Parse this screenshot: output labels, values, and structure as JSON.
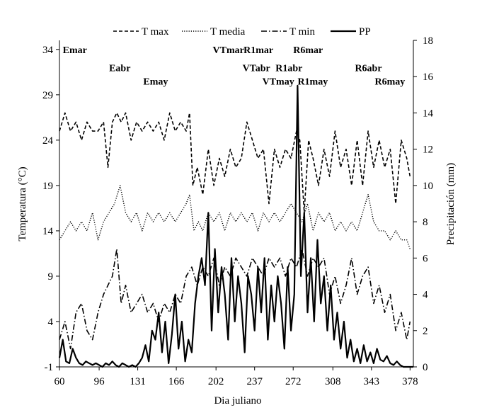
{
  "chart_data": {
    "type": "line",
    "xlabel": "Dia juliano",
    "ylabel_left": "Temperatura  (°C)",
    "ylabel_right": "Precipitación  (mm)",
    "x_ticks": [
      60,
      96,
      131,
      166,
      202,
      237,
      272,
      308,
      343,
      378
    ],
    "xlim": [
      60,
      381
    ],
    "y_left_ticks": [
      -1,
      4,
      9,
      14,
      19,
      24,
      29,
      34
    ],
    "y_left_lim": [
      -1,
      35
    ],
    "y_right_ticks": [
      0,
      2,
      4,
      6,
      8,
      10,
      12,
      14,
      16,
      18
    ],
    "y_right_lim": [
      0,
      18
    ],
    "legend_position": "top",
    "grid": false,
    "series": [
      {
        "name": "T max",
        "axis": "left",
        "style": "dashed",
        "x": [
          60,
          65,
          70,
          75,
          80,
          85,
          90,
          95,
          100,
          104,
          108,
          112,
          116,
          120,
          125,
          130,
          135,
          140,
          145,
          150,
          155,
          160,
          165,
          170,
          175,
          178,
          181,
          185,
          190,
          195,
          200,
          205,
          210,
          215,
          220,
          225,
          230,
          235,
          240,
          245,
          250,
          255,
          260,
          265,
          270,
          275,
          278,
          282,
          286,
          290,
          295,
          300,
          305,
          310,
          315,
          320,
          325,
          330,
          335,
          340,
          345,
          350,
          355,
          360,
          365,
          370,
          375,
          378
        ],
        "y": [
          25,
          27,
          25,
          26,
          24,
          26,
          25,
          25,
          26,
          21,
          26,
          27,
          26,
          27,
          24,
          26,
          25,
          26,
          25,
          26,
          24,
          27,
          25,
          26,
          25,
          27,
          19,
          21,
          18,
          23,
          19,
          22,
          20,
          23,
          21,
          22,
          26,
          24,
          22,
          23,
          17,
          23,
          21,
          23,
          22,
          25,
          24,
          16,
          24,
          22,
          19,
          23,
          20,
          25,
          21,
          23,
          19,
          24,
          19,
          25,
          21,
          24,
          21,
          23,
          17,
          24,
          22,
          20
        ]
      },
      {
        "name": "T media",
        "axis": "left",
        "style": "dotted",
        "x": [
          60,
          65,
          70,
          75,
          80,
          85,
          90,
          95,
          100,
          105,
          110,
          115,
          120,
          125,
          130,
          135,
          140,
          145,
          150,
          155,
          160,
          165,
          170,
          175,
          178,
          182,
          186,
          190,
          195,
          200,
          205,
          210,
          215,
          220,
          225,
          230,
          235,
          240,
          245,
          250,
          255,
          260,
          265,
          270,
          275,
          280,
          285,
          290,
          295,
          300,
          305,
          310,
          315,
          320,
          325,
          330,
          335,
          340,
          345,
          350,
          355,
          360,
          365,
          370,
          375,
          378
        ],
        "y": [
          13,
          14,
          15,
          14,
          15,
          14,
          16,
          13,
          15,
          16,
          17,
          19,
          16,
          15,
          16,
          14,
          16,
          15,
          16,
          15,
          16,
          15,
          16,
          17,
          18,
          14,
          15,
          14,
          16,
          15,
          16,
          14,
          16,
          15,
          16,
          15,
          16,
          14,
          16,
          15,
          16,
          15,
          16,
          17,
          16,
          15,
          17,
          14,
          16,
          15,
          16,
          14,
          15,
          14,
          15,
          14,
          16,
          18,
          15,
          14,
          14,
          13,
          14,
          13,
          13,
          12
        ]
      },
      {
        "name": "T min",
        "axis": "left",
        "style": "dashdot",
        "x": [
          60,
          65,
          70,
          75,
          80,
          85,
          90,
          95,
          100,
          104,
          108,
          112,
          116,
          120,
          125,
          130,
          135,
          140,
          145,
          150,
          155,
          160,
          165,
          170,
          175,
          180,
          185,
          190,
          195,
          200,
          205,
          210,
          215,
          220,
          225,
          230,
          235,
          240,
          245,
          250,
          255,
          260,
          265,
          270,
          275,
          280,
          285,
          290,
          295,
          300,
          305,
          310,
          315,
          320,
          325,
          330,
          335,
          340,
          345,
          350,
          355,
          360,
          365,
          370,
          375,
          378
        ],
        "y": [
          2,
          4,
          1,
          5,
          6,
          3,
          2,
          5,
          7,
          8,
          9,
          12,
          6,
          8,
          5,
          6,
          7,
          5,
          6,
          4,
          6,
          5,
          7,
          6,
          9,
          10,
          8,
          10,
          9,
          11,
          8,
          10,
          9,
          11,
          10,
          9,
          11,
          10,
          9,
          11,
          10,
          11,
          9,
          11,
          10,
          12,
          9,
          11,
          10,
          11,
          7,
          9,
          6,
          8,
          11,
          7,
          9,
          10,
          6,
          8,
          5,
          7,
          3,
          5,
          2,
          4
        ]
      },
      {
        "name": "PP",
        "axis": "right",
        "style": "solid",
        "x": [
          60,
          63,
          66,
          69,
          72,
          75,
          78,
          81,
          84,
          87,
          90,
          93,
          96,
          99,
          102,
          105,
          108,
          111,
          114,
          117,
          120,
          123,
          126,
          129,
          132,
          135,
          138,
          141,
          144,
          147,
          150,
          153,
          156,
          159,
          162,
          165,
          168,
          171,
          174,
          177,
          180,
          183,
          186,
          189,
          192,
          195,
          198,
          201,
          204,
          207,
          210,
          213,
          216,
          219,
          222,
          225,
          228,
          231,
          234,
          237,
          240,
          243,
          246,
          249,
          252,
          255,
          258,
          261,
          264,
          267,
          270,
          273,
          276,
          279,
          282,
          285,
          288,
          291,
          294,
          297,
          300,
          303,
          306,
          309,
          312,
          315,
          318,
          321,
          324,
          327,
          330,
          333,
          336,
          339,
          342,
          345,
          348,
          351,
          354,
          357,
          360,
          363,
          366,
          369,
          372,
          375,
          378,
          381
        ],
        "y": [
          0.5,
          1.5,
          0.3,
          0.2,
          1.0,
          0.5,
          0.2,
          0.1,
          0.3,
          0.2,
          0.1,
          0.2,
          0.1,
          0.0,
          0.2,
          0.1,
          0.3,
          0.1,
          0.0,
          0.2,
          0.1,
          0.0,
          0.1,
          0.0,
          0.2,
          0.5,
          1.2,
          0.3,
          2.0,
          1.5,
          3.0,
          0.8,
          2.5,
          0.2,
          1.8,
          4.0,
          1.0,
          2.5,
          0.3,
          1.5,
          0.8,
          3.5,
          5.0,
          6.0,
          4.5,
          8.5,
          2.0,
          6.5,
          3.0,
          5.5,
          4.0,
          1.5,
          6.0,
          2.5,
          5.0,
          3.5,
          0.8,
          5.0,
          4.0,
          2.0,
          5.5,
          3.0,
          6.0,
          1.5,
          4.5,
          2.5,
          5.0,
          3.5,
          1.0,
          5.5,
          2.0,
          4.0,
          15.5,
          5.0,
          8.5,
          3.0,
          6.0,
          2.5,
          7.0,
          3.5,
          5.0,
          2.0,
          4.5,
          1.5,
          3.0,
          1.0,
          2.5,
          0.5,
          1.5,
          0.3,
          1.0,
          0.2,
          1.2,
          0.3,
          0.8,
          0.2,
          1.0,
          0.4,
          0.3,
          0.6,
          0.2,
          0.1,
          0.3,
          0.1,
          0.0,
          0.0,
          0.0,
          0.0
        ]
      }
    ],
    "annotations": [
      {
        "text": "Emar",
        "x": 63,
        "y": 34
      },
      {
        "text": "Eabr",
        "x": 105,
        "y": 32
      },
      {
        "text": "Emay",
        "x": 136,
        "y": 30.5
      },
      {
        "text": "VTmar",
        "x": 199,
        "y": 34
      },
      {
        "text": "R1mar",
        "x": 227,
        "y": 34
      },
      {
        "text": "VTabr",
        "x": 226,
        "y": 32
      },
      {
        "text": "R1abr",
        "x": 256,
        "y": 32
      },
      {
        "text": "R6mar",
        "x": 272,
        "y": 34
      },
      {
        "text": "VTmay",
        "x": 244,
        "y": 30.5
      },
      {
        "text": "R1may",
        "x": 276,
        "y": 30.5
      },
      {
        "text": "R6abr",
        "x": 328,
        "y": 32
      },
      {
        "text": "R6may",
        "x": 346,
        "y": 30.5
      }
    ]
  }
}
